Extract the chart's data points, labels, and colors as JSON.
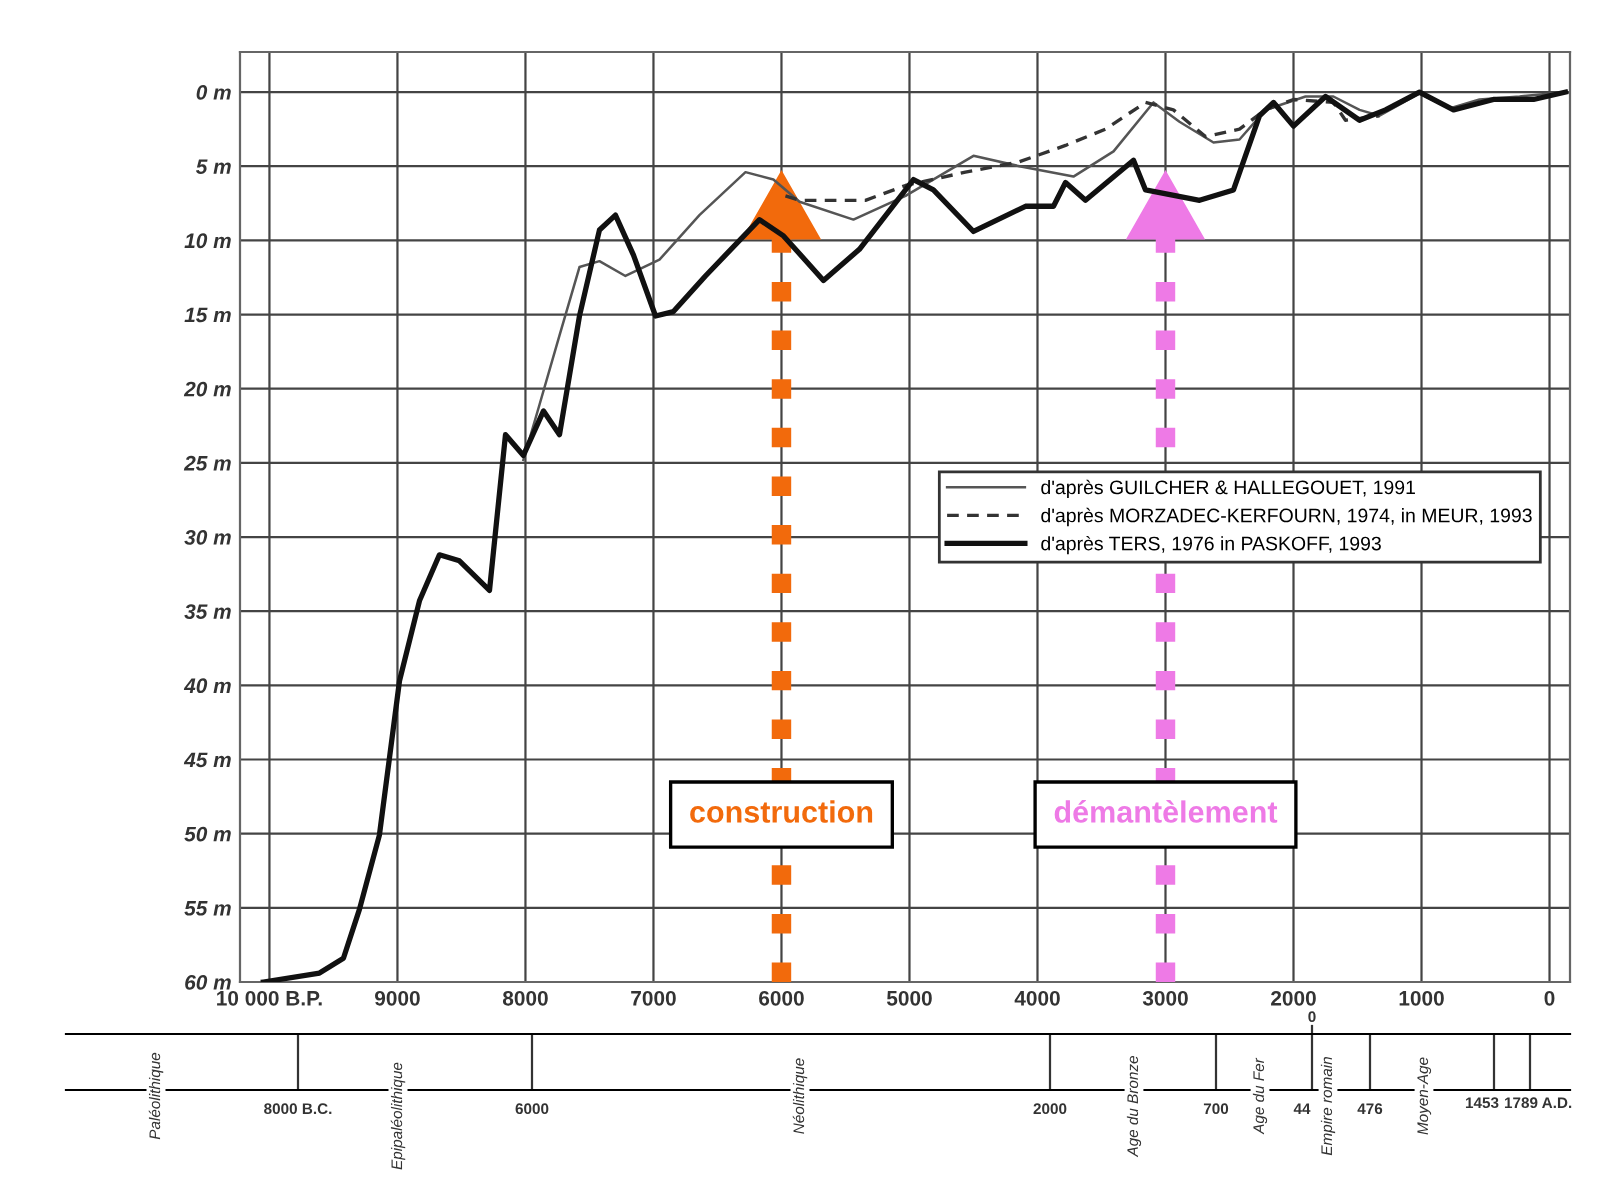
{
  "chart_data": [
    {
      "type": "line",
      "series": [
        {
          "name": "d'après GUILCHER & HALLEGOUET, 1991",
          "color": "#555555",
          "x": [
            8016,
            7891,
            7734,
            7578,
            7422,
            7219,
            6953,
            6641,
            6281,
            6063,
            5859,
            5438,
            5031,
            4500,
            4141,
            3719,
            3406,
            3094,
            2891,
            2625,
            2422,
            2219,
            1906,
            1688,
            1484,
            1328,
            1016,
            781,
            547,
            234,
            -125
          ],
          "values": [
            24.8,
            21.1,
            16.4,
            11.8,
            11.4,
            12.4,
            11.3,
            8.3,
            5.4,
            5.9,
            7.4,
            8.6,
            7.0,
            4.3,
            5.0,
            5.7,
            4.0,
            0.7,
            2.0,
            3.4,
            3.2,
            1.2,
            0.3,
            0.3,
            1.2,
            1.6,
            0.1,
            1.1,
            0.5,
            0.3,
            0.0
          ]
        },
        {
          "name": "d'après MORZADEC-KERFOURN, 1974, in MEUR, 1993",
          "color": "#333333",
          "line_style": "dashed",
          "x": [
            5969,
            5859,
            5344,
            5031,
            4563,
            4141,
            3781,
            3469,
            3156,
            2938,
            2688,
            2422,
            2219,
            2000,
            1688,
            1594,
            1328
          ],
          "values": [
            7.0,
            7.3,
            7.3,
            6.3,
            5.4,
            4.7,
            3.6,
            2.5,
            0.7,
            1.2,
            3.0,
            2.5,
            1.2,
            0.5,
            0.7,
            1.9,
            1.6
          ]
        },
        {
          "name": "d'après TERS, 1976 in PASKOFF, 1993",
          "color": "#111111",
          "x": [
            10047,
            9609,
            9422,
            9297,
            9141,
            8984,
            8828,
            8672,
            8516,
            8281,
            8156,
            8016,
            7859,
            7734,
            7578,
            7422,
            7297,
            7156,
            6984,
            6844,
            6594,
            6172,
            5984,
            5672,
            5391,
            4969,
            4813,
            4500,
            4094,
            3875,
            3781,
            3625,
            3250,
            3156,
            2734,
            2469,
            2266,
            2156,
            2000,
            1750,
            1484,
            1281,
            1016,
            750,
            438,
            125,
            -125
          ],
          "values": [
            60.0,
            59.4,
            58.4,
            55.1,
            50.1,
            39.7,
            34.3,
            31.2,
            31.6,
            33.6,
            23.1,
            24.5,
            21.5,
            23.1,
            15.1,
            9.3,
            8.3,
            11.0,
            15.1,
            14.8,
            12.4,
            8.6,
            9.7,
            12.7,
            10.6,
            5.9,
            6.6,
            9.4,
            7.7,
            7.7,
            6.1,
            7.3,
            4.6,
            6.6,
            7.3,
            6.6,
            1.6,
            0.7,
            2.3,
            0.3,
            1.9,
            1.2,
            0.0,
            1.2,
            0.5,
            0.5,
            0.0
          ]
        }
      ],
      "line_style": "solid",
      "xlim": [
        10230,
        -160
      ],
      "xticks": [
        {
          "value": 10000,
          "label": "10 000 B.P."
        },
        9000,
        8000,
        7000,
        6000,
        5000,
        4000,
        3000,
        2000,
        1000,
        0
      ],
      "ylim": [
        60,
        -2.7
      ],
      "yticks": [
        {
          "value": 0,
          "label": "0 m"
        },
        {
          "value": 5,
          "label": "5 m"
        },
        {
          "value": 10,
          "label": "10 m"
        },
        {
          "value": 15,
          "label": "15 m"
        },
        {
          "value": 20,
          "label": "20 m"
        },
        {
          "value": 25,
          "label": "25 m"
        },
        {
          "value": 30,
          "label": "30 m"
        },
        {
          "value": 35,
          "label": "35 m"
        },
        {
          "value": 40,
          "label": "40 m"
        },
        {
          "value": 45,
          "label": "45 m"
        },
        {
          "value": 50,
          "label": "50 m"
        },
        {
          "value": 55,
          "label": "55 m"
        },
        {
          "value": 60,
          "label": "60 m"
        }
      ],
      "ref_lines": [
        {
          "axis": "x",
          "value": 6000,
          "label": "construction",
          "color": "#f26a0c",
          "line_style": "dotted"
        },
        {
          "axis": "x",
          "value": 3000,
          "label": "démantèlement",
          "color": "#ee7ae6",
          "line_style": "dotted"
        }
      ],
      "grid": true,
      "legend": "right"
    },
    {
      "type": "other",
      "annotations": [
        "8000 B.C.",
        "6000",
        "2000",
        "700",
        "0",
        "44",
        "476",
        "1453",
        "1789 A.D.",
        "Paléolithique",
        "Epipaléolithique",
        "Néolithique",
        "Age du Bronze",
        "Age du Fer",
        "Empire romain",
        "Moyen-Age"
      ]
    }
  ]
}
